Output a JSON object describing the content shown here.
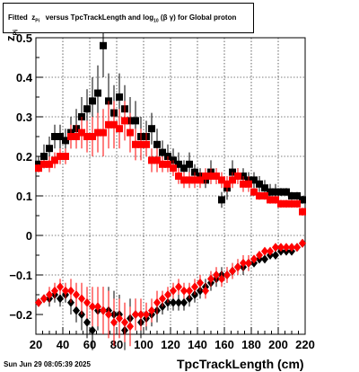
{
  "title": {
    "prefix": "Fitted",
    "z": "z",
    "z_sub": "Pi",
    "mid": "versus TpcTrackLength and log",
    "log_sub": "10",
    "paren": "(β γ) for Global proton"
  },
  "footer": {
    "date": "Sun Jun 29 08:05:39 2025"
  },
  "chart_data": {
    "type": "scatter",
    "title": "Fitted z_Pi versus TpcTrackLength and log_10(β γ) for Global proton",
    "xlabel": "TpcTrackLength (cm)",
    "ylabel_main": "z",
    "ylabel_sub": "Pi",
    "xlim": [
      20,
      220
    ],
    "ylim": [
      -0.25,
      0.5
    ],
    "grid": true,
    "x_ticks": [
      20,
      40,
      60,
      80,
      100,
      120,
      140,
      160,
      180,
      200,
      220
    ],
    "x_tick_labels": [
      "20",
      "40",
      "60",
      "80",
      "100",
      "120",
      "140",
      "160",
      "180",
      "200",
      "220"
    ],
    "y_ticks": [
      -0.2,
      -0.1,
      0,
      0.1,
      0.2,
      0.3,
      0.4,
      0.5
    ],
    "y_tick_labels": [
      "−0.2",
      "−0.1",
      "0",
      "0.1",
      "0.2",
      "0.3",
      "0.4",
      "0.5"
    ],
    "series": [
      {
        "marker": "square",
        "color": "#000000",
        "x": [
          22,
          26,
          30,
          34,
          38,
          42,
          46,
          50,
          54,
          58,
          62,
          66,
          70,
          74,
          78,
          82,
          86,
          90,
          94,
          98,
          102,
          106,
          110,
          114,
          118,
          122,
          126,
          130,
          134,
          138,
          142,
          146,
          150,
          154,
          158,
          162,
          166,
          170,
          174,
          178,
          182,
          186,
          190,
          194,
          198,
          202,
          206,
          210,
          214,
          218
        ],
        "y": [
          0.18,
          0.2,
          0.22,
          0.25,
          0.25,
          0.24,
          0.26,
          0.27,
          0.3,
          0.32,
          0.34,
          0.36,
          0.48,
          0.34,
          0.31,
          0.35,
          0.32,
          0.29,
          0.29,
          0.25,
          0.25,
          0.27,
          0.23,
          0.21,
          0.2,
          0.19,
          0.18,
          0.17,
          0.18,
          0.16,
          0.15,
          0.14,
          0.16,
          0.15,
          0.09,
          0.12,
          0.16,
          0.15,
          0.15,
          0.14,
          0.14,
          0.13,
          0.12,
          0.11,
          0.11,
          0.11,
          0.11,
          0.1,
          0.1,
          0.09
        ],
        "yerr": [
          0.02,
          0.03,
          0.03,
          0.03,
          0.03,
          0.03,
          0.04,
          0.05,
          0.05,
          0.05,
          0.06,
          0.07,
          0.08,
          0.07,
          0.07,
          0.06,
          0.06,
          0.06,
          0.05,
          0.05,
          0.04,
          0.04,
          0.04,
          0.03,
          0.03,
          0.03,
          0.03,
          0.02,
          0.03,
          0.02,
          0.02,
          0.02,
          0.03,
          0.02,
          0.02,
          0.03,
          0.03,
          0.02,
          0.02,
          0.02,
          0.02,
          0.02,
          0.02,
          0.02,
          0.02,
          0.01,
          0.01,
          0.01,
          0.01,
          0.01
        ]
      },
      {
        "marker": "square",
        "color": "#ff0000",
        "x": [
          22,
          26,
          30,
          34,
          38,
          42,
          46,
          50,
          54,
          58,
          62,
          66,
          70,
          74,
          78,
          82,
          86,
          90,
          94,
          98,
          102,
          106,
          110,
          114,
          118,
          122,
          126,
          130,
          134,
          138,
          142,
          146,
          150,
          154,
          158,
          162,
          166,
          170,
          174,
          178,
          182,
          186,
          190,
          194,
          198,
          202,
          206,
          210,
          214,
          218
        ],
        "y": [
          0.17,
          0.18,
          0.18,
          0.19,
          0.2,
          0.2,
          0.25,
          0.25,
          0.26,
          0.25,
          0.25,
          0.26,
          0.26,
          0.28,
          0.28,
          0.27,
          0.29,
          0.26,
          0.23,
          0.23,
          0.23,
          0.19,
          0.19,
          0.18,
          0.18,
          0.17,
          0.15,
          0.14,
          0.14,
          0.14,
          0.14,
          0.15,
          0.15,
          0.15,
          0.14,
          0.13,
          0.14,
          0.15,
          0.13,
          0.13,
          0.11,
          0.1,
          0.1,
          0.09,
          0.09,
          0.08,
          0.08,
          0.08,
          0.08,
          0.06
        ],
        "yerr": [
          0.01,
          0.01,
          0.02,
          0.02,
          0.02,
          0.02,
          0.03,
          0.03,
          0.04,
          0.04,
          0.05,
          0.05,
          0.06,
          0.06,
          0.06,
          0.05,
          0.05,
          0.05,
          0.04,
          0.04,
          0.03,
          0.03,
          0.03,
          0.02,
          0.02,
          0.02,
          0.02,
          0.02,
          0.02,
          0.02,
          0.02,
          0.02,
          0.02,
          0.02,
          0.02,
          0.02,
          0.02,
          0.02,
          0.02,
          0.02,
          0.01,
          0.01,
          0.01,
          0.01,
          0.01,
          0.01,
          0.01,
          0.01,
          0.01,
          0.01
        ]
      },
      {
        "marker": "diamond",
        "color": "#000000",
        "x": [
          22,
          26,
          30,
          34,
          38,
          42,
          46,
          50,
          54,
          58,
          62,
          66,
          70,
          74,
          78,
          82,
          86,
          90,
          94,
          98,
          102,
          106,
          110,
          114,
          118,
          122,
          126,
          130,
          134,
          138,
          142,
          146,
          150,
          154,
          158,
          162,
          166,
          170,
          174,
          178,
          182,
          186,
          190,
          194,
          198,
          202,
          206,
          210,
          214,
          218
        ],
        "y": [
          -0.17,
          -0.16,
          -0.16,
          -0.15,
          -0.16,
          -0.15,
          -0.17,
          -0.19,
          -0.2,
          -0.22,
          -0.24,
          -0.19,
          -0.19,
          -0.19,
          -0.2,
          -0.2,
          -0.24,
          -0.21,
          -0.2,
          -0.22,
          -0.21,
          -0.2,
          -0.19,
          -0.18,
          -0.17,
          -0.17,
          -0.17,
          -0.17,
          -0.16,
          -0.15,
          -0.14,
          -0.13,
          -0.12,
          -0.11,
          -0.1,
          -0.1,
          -0.09,
          -0.08,
          -0.08,
          -0.07,
          -0.07,
          -0.06,
          -0.06,
          -0.05,
          -0.05,
          -0.04,
          -0.04,
          -0.04,
          -0.03,
          -0.02
        ],
        "yerr": [
          0.01,
          0.01,
          0.02,
          0.02,
          0.02,
          0.02,
          0.03,
          0.03,
          0.04,
          0.04,
          0.05,
          0.05,
          0.06,
          0.06,
          0.06,
          0.05,
          0.05,
          0.05,
          0.04,
          0.04,
          0.03,
          0.03,
          0.03,
          0.02,
          0.02,
          0.02,
          0.02,
          0.02,
          0.02,
          0.02,
          0.02,
          0.02,
          0.02,
          0.02,
          0.02,
          0.02,
          0.02,
          0.02,
          0.02,
          0.02,
          0.01,
          0.01,
          0.01,
          0.01,
          0.01,
          0.01,
          0.01,
          0.01,
          0.01,
          0.01
        ]
      },
      {
        "marker": "diamond",
        "color": "#ff0000",
        "x": [
          22,
          26,
          30,
          34,
          38,
          42,
          46,
          50,
          54,
          58,
          62,
          66,
          70,
          74,
          78,
          82,
          86,
          90,
          94,
          98,
          102,
          106,
          110,
          114,
          118,
          122,
          126,
          130,
          134,
          138,
          142,
          146,
          150,
          154,
          158,
          162,
          166,
          170,
          174,
          178,
          182,
          186,
          190,
          194,
          198,
          202,
          206,
          210,
          214,
          218
        ],
        "y": [
          -0.17,
          -0.16,
          -0.15,
          -0.14,
          -0.13,
          -0.14,
          -0.14,
          -0.15,
          -0.16,
          -0.17,
          -0.18,
          -0.18,
          -0.19,
          -0.2,
          -0.22,
          -0.21,
          -0.22,
          -0.23,
          -0.2,
          -0.2,
          -0.2,
          -0.19,
          -0.17,
          -0.16,
          -0.15,
          -0.14,
          -0.13,
          -0.14,
          -0.14,
          -0.13,
          -0.12,
          -0.14,
          -0.11,
          -0.1,
          -0.11,
          -0.1,
          -0.09,
          -0.08,
          -0.07,
          -0.07,
          -0.06,
          -0.05,
          -0.04,
          -0.04,
          -0.03,
          -0.03,
          -0.03,
          -0.03,
          -0.03,
          -0.02
        ],
        "yerr": [
          0.01,
          0.01,
          0.02,
          0.02,
          0.02,
          0.02,
          0.03,
          0.03,
          0.04,
          0.04,
          0.05,
          0.05,
          0.06,
          0.06,
          0.06,
          0.05,
          0.05,
          0.05,
          0.04,
          0.04,
          0.03,
          0.03,
          0.03,
          0.02,
          0.02,
          0.02,
          0.02,
          0.02,
          0.02,
          0.02,
          0.02,
          0.02,
          0.02,
          0.02,
          0.02,
          0.02,
          0.02,
          0.02,
          0.02,
          0.02,
          0.01,
          0.01,
          0.01,
          0.01,
          0.01,
          0.01,
          0.01,
          0.01,
          0.01,
          0.01
        ]
      }
    ]
  }
}
